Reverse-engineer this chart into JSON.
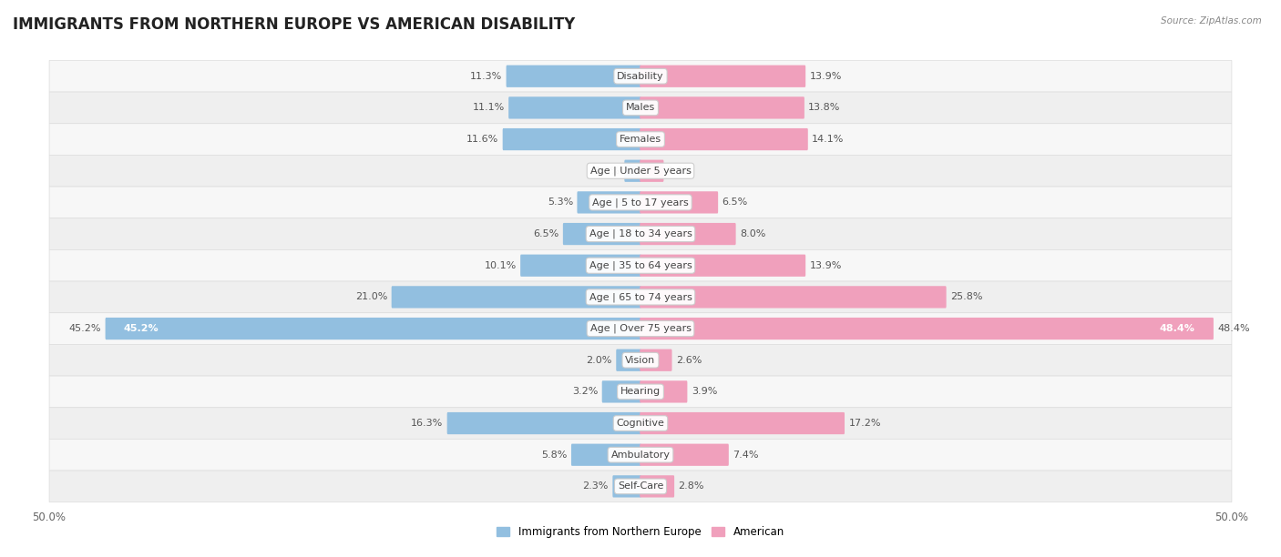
{
  "title": "IMMIGRANTS FROM NORTHERN EUROPE VS AMERICAN DISABILITY",
  "source": "Source: ZipAtlas.com",
  "categories": [
    "Disability",
    "Males",
    "Females",
    "Age | Under 5 years",
    "Age | 5 to 17 years",
    "Age | 18 to 34 years",
    "Age | 35 to 64 years",
    "Age | 65 to 74 years",
    "Age | Over 75 years",
    "Vision",
    "Hearing",
    "Cognitive",
    "Ambulatory",
    "Self-Care"
  ],
  "left_values": [
    11.3,
    11.1,
    11.6,
    1.3,
    5.3,
    6.5,
    10.1,
    21.0,
    45.2,
    2.0,
    3.2,
    16.3,
    5.8,
    2.3
  ],
  "right_values": [
    13.9,
    13.8,
    14.1,
    1.9,
    6.5,
    8.0,
    13.9,
    25.8,
    48.4,
    2.6,
    3.9,
    17.2,
    7.4,
    2.8
  ],
  "left_color": "#92bfe0",
  "right_color": "#f0a0bc",
  "left_label": "Immigrants from Northern Europe",
  "right_label": "American",
  "axis_max": 50.0,
  "row_colors": [
    "#f7f7f7",
    "#efefef"
  ],
  "title_fontsize": 12,
  "label_fontsize": 8.5,
  "value_fontsize": 8,
  "cat_fontsize": 8,
  "x_tick_label": "50.0%"
}
